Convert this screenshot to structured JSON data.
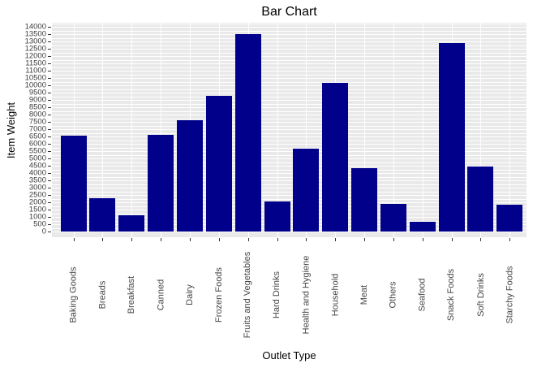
{
  "chart_data": {
    "type": "bar",
    "title": "Bar Chart",
    "xlabel": "Outlet Type",
    "ylabel": "Item Weight",
    "categories": [
      "Baking Goods",
      "Breads",
      "Breakfast",
      "Canned",
      "Dairy",
      "Frozen Foods",
      "Fruits and Vegetables",
      "Hard Drinks",
      "Health and Hygiene",
      "Household",
      "Meat",
      "Others",
      "Seafood",
      "Snack Foods",
      "Soft Drinks",
      "Starchy Foods"
    ],
    "values": [
      6550,
      2280,
      1110,
      6630,
      7610,
      9280,
      13500,
      2070,
      5680,
      10180,
      4330,
      1890,
      650,
      12870,
      4430,
      1820
    ],
    "ylim": [
      0,
      14000
    ],
    "ytick_interval": 500,
    "grid_minor_interval": 250,
    "legend": "none",
    "grid": "white horizontal lines every 250 units and vertical line at each category center on gray panel",
    "colors": {
      "bar": "#00008B",
      "plot_bg": "#E9E9E9",
      "gridline": "#FFFFFF",
      "tick": "#333333",
      "tick_label": "#3D3D3D",
      "axis_label": "#000000"
    }
  }
}
